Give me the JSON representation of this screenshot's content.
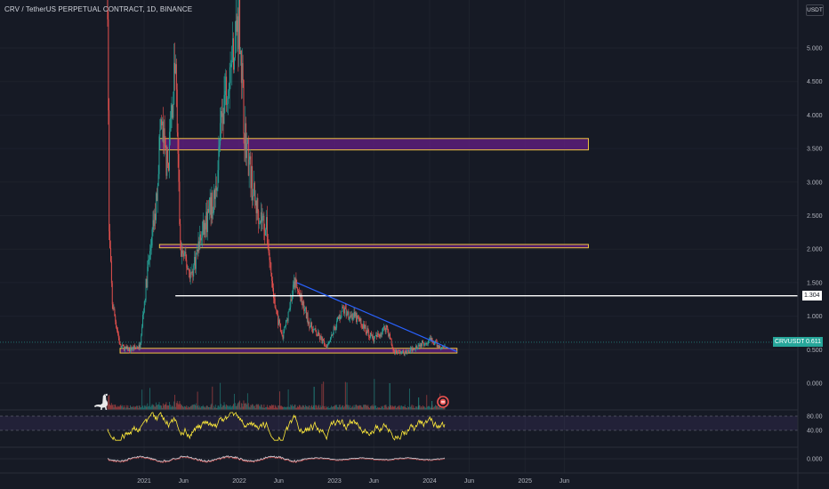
{
  "header": {
    "title": "CRV / TetherUS PERPETUAL CONTRACT, 1D, BINANCE",
    "currency": "USDT"
  },
  "price_axis": {
    "ticks": [
      "5.000",
      "4.500",
      "4.000",
      "3.500",
      "3.000",
      "2.500",
      "2.000",
      "1.500",
      "1.000",
      "0.500",
      "0.000"
    ]
  },
  "rsi_axis": {
    "ticks": [
      "80.00",
      "40.00"
    ]
  },
  "macd_axis": {
    "ticks": [
      "0.000"
    ]
  },
  "time_axis": {
    "labels": [
      "2021",
      "Jun",
      "2022",
      "Jun",
      "2023",
      "Jun",
      "2024",
      "Jun",
      "2025",
      "Jun"
    ]
  },
  "price_tags": {
    "level_label": "1.304",
    "symbol_label": "CRVUSDT.P",
    "last_price": "0.611"
  },
  "colors": {
    "background": "#161a25",
    "up": "#26a69a",
    "down": "#ef5350",
    "zone_border": "#f0c341",
    "zone_fill": "#5c1f7a",
    "trendline": "#2962ff",
    "level_line": "#ffffff",
    "rsi_line": "#ffeb3b",
    "rsi_band": "#7e57c2"
  },
  "icons": {
    "logo": "dinosaur-logo-icon",
    "alert": "alert-badge-icon"
  },
  "chart_data": {
    "type": "candlestick",
    "y_range": [
      0,
      5.4
    ],
    "x_range": [
      "2020-08",
      "2025-09"
    ],
    "price_path": [
      [
        "2020-08-14",
        5.9
      ],
      [
        "2020-08-20",
        2.2
      ],
      [
        "2020-09-01",
        1.2
      ],
      [
        "2020-10-01",
        0.55
      ],
      [
        "2020-11-01",
        0.5
      ],
      [
        "2020-12-15",
        0.55
      ],
      [
        "2021-01-15",
        1.7
      ],
      [
        "2021-02-15",
        2.6
      ],
      [
        "2021-03-05",
        3.9
      ],
      [
        "2021-04-01",
        3.2
      ],
      [
        "2021-05-01",
        4.8
      ],
      [
        "2021-05-20",
        2.0
      ],
      [
        "2021-07-01",
        1.6
      ],
      [
        "2021-08-01",
        2.1
      ],
      [
        "2021-10-01",
        2.8
      ],
      [
        "2021-11-01",
        4.2
      ],
      [
        "2022-01-01",
        5.5
      ],
      [
        "2022-01-20",
        3.8
      ],
      [
        "2022-03-01",
        2.7
      ],
      [
        "2022-04-15",
        2.3
      ],
      [
        "2022-05-15",
        1.2
      ],
      [
        "2022-06-15",
        0.65
      ],
      [
        "2022-08-01",
        1.5
      ],
      [
        "2022-10-01",
        0.85
      ],
      [
        "2022-12-01",
        0.55
      ],
      [
        "2023-02-01",
        1.1
      ],
      [
        "2023-04-01",
        0.95
      ],
      [
        "2023-06-01",
        0.65
      ],
      [
        "2023-07-20",
        0.85
      ],
      [
        "2023-08-15",
        0.48
      ],
      [
        "2023-10-01",
        0.45
      ],
      [
        "2023-11-15",
        0.56
      ],
      [
        "2024-01-01",
        0.65
      ],
      [
        "2024-02-15",
        0.52
      ],
      [
        "2024-03-01",
        0.611
      ]
    ],
    "zones": [
      {
        "from": "2021-03-01",
        "to": "2025-09-01",
        "low": 3.48,
        "high": 3.65
      },
      {
        "from": "2021-03-01",
        "to": "2025-09-01",
        "low": 2.02,
        "high": 2.07
      },
      {
        "from": "2020-10-01",
        "to": "2024-04-15",
        "low": 0.45,
        "high": 0.52
      }
    ],
    "horizontal_level": {
      "from": "2021-05-01",
      "value": 1.304
    },
    "trendline": [
      [
        "2022-08-10",
        1.5
      ],
      [
        "2024-04-15",
        0.47
      ]
    ],
    "rsi_levels": [
      80,
      40
    ]
  }
}
